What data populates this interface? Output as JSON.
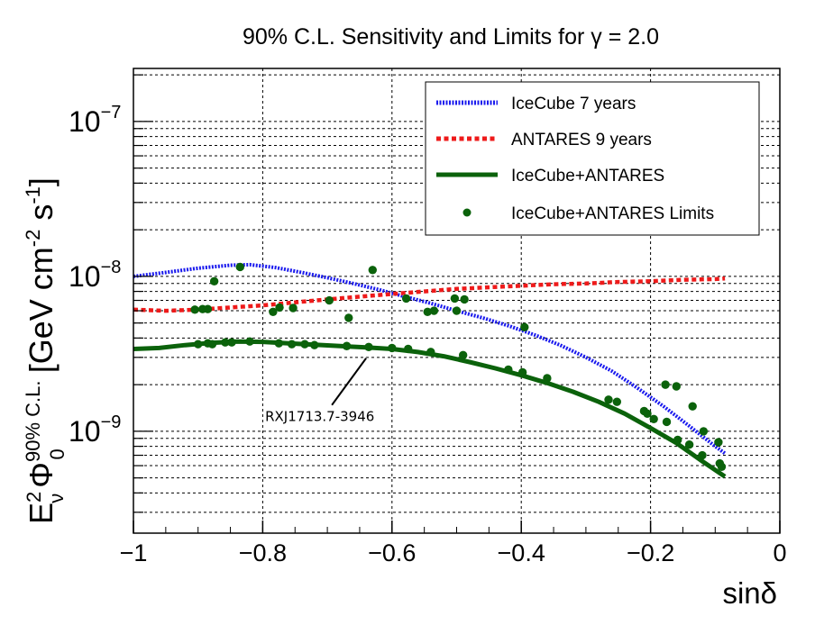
{
  "chart_data": {
    "type": "line",
    "title": "90% C.L. Sensitivity and Limits for γ = 2.0",
    "xlabel": "sinδ",
    "ylabel": {
      "base": "E",
      "base_sup": "2",
      "base_sub": "ν",
      "phi": "Φ",
      "phi_sup": "90% C.L.",
      "phi_sub": "0",
      "units": "[GeV cm",
      "units_exp1": "-2",
      "units_mid": " s",
      "units_exp2": "-1",
      "units_end": "]"
    },
    "xlim": [
      -1,
      0
    ],
    "ylim": [
      2.2e-10,
      2.2e-07
    ],
    "yscale": "log",
    "grid": true,
    "x_ticks": [
      {
        "value": -1,
        "label": "−1"
      },
      {
        "value": -0.8,
        "label": "−0.8"
      },
      {
        "value": -0.6,
        "label": "−0.6"
      },
      {
        "value": -0.4,
        "label": "−0.4"
      },
      {
        "value": -0.2,
        "label": "−0.2"
      },
      {
        "value": 0,
        "label": "0"
      }
    ],
    "y_ticks": [
      {
        "value": 1e-09,
        "base": "10",
        "exp": "−9"
      },
      {
        "value": 1e-08,
        "base": "10",
        "exp": "−8"
      },
      {
        "value": 1e-07,
        "base": "10",
        "exp": "−7"
      }
    ],
    "legend_position": "top-right",
    "series": [
      {
        "name": "IceCube 7 years",
        "kind": "line",
        "style": "dotted",
        "color": "#1a1aee",
        "x": [
          -1.0,
          -0.95,
          -0.9,
          -0.85,
          -0.82,
          -0.78,
          -0.74,
          -0.7,
          -0.66,
          -0.62,
          -0.58,
          -0.54,
          -0.5,
          -0.46,
          -0.42,
          -0.38,
          -0.34,
          -0.3,
          -0.26,
          -0.22,
          -0.18,
          -0.14,
          -0.1,
          -0.085
        ],
        "y": [
          1e-08,
          1.06e-08,
          1.13e-08,
          1.18e-08,
          1.19e-08,
          1.14e-08,
          1.06e-08,
          9.8e-09,
          9e-09,
          8.2e-09,
          7.4e-09,
          6.7e-09,
          6e-09,
          5.4e-09,
          4.8e-09,
          4.2e-09,
          3.6e-09,
          3e-09,
          2.45e-09,
          1.9e-09,
          1.45e-09,
          1.08e-09,
          8e-10,
          7.2e-10
        ]
      },
      {
        "name": "ANTARES 9 years",
        "kind": "line",
        "style": "dashed",
        "color": "#ee1a1a",
        "x": [
          -1.0,
          -0.95,
          -0.9,
          -0.85,
          -0.8,
          -0.75,
          -0.7,
          -0.65,
          -0.6,
          -0.55,
          -0.5,
          -0.45,
          -0.4,
          -0.35,
          -0.3,
          -0.25,
          -0.2,
          -0.15,
          -0.1,
          -0.085
        ],
        "y": [
          6.1e-09,
          6e-09,
          6.1e-09,
          6.3e-09,
          6.5e-09,
          6.8e-09,
          7.1e-09,
          7.4e-09,
          7.7e-09,
          8e-09,
          8.3e-09,
          8.5e-09,
          8.7e-09,
          8.9e-09,
          9e-09,
          9.2e-09,
          9.3e-09,
          9.5e-09,
          9.6e-09,
          9.7e-09
        ]
      },
      {
        "name": "IceCube+ANTARES",
        "kind": "line",
        "style": "solid",
        "color": "#0b620b",
        "x": [
          -1.0,
          -0.96,
          -0.92,
          -0.88,
          -0.84,
          -0.8,
          -0.76,
          -0.72,
          -0.68,
          -0.64,
          -0.6,
          -0.56,
          -0.52,
          -0.48,
          -0.44,
          -0.4,
          -0.36,
          -0.32,
          -0.28,
          -0.24,
          -0.2,
          -0.16,
          -0.12,
          -0.085
        ],
        "y": [
          3.4e-09,
          3.45e-09,
          3.6e-09,
          3.72e-09,
          3.8e-09,
          3.78e-09,
          3.7e-09,
          3.62e-09,
          3.55e-09,
          3.48e-09,
          3.4e-09,
          3.25e-09,
          3.05e-09,
          2.8e-09,
          2.55e-09,
          2.3e-09,
          2.05e-09,
          1.8e-09,
          1.55e-09,
          1.3e-09,
          1.05e-09,
          8.4e-10,
          6.4e-10,
          5.1e-10
        ]
      },
      {
        "name": "IceCube+ANTARES Limits",
        "kind": "scatter",
        "color": "#0b620b",
        "x": [
          -0.905,
          -0.9,
          -0.893,
          -0.885,
          -0.885,
          -0.878,
          -0.875,
          -0.858,
          -0.848,
          -0.835,
          -0.82,
          -0.784,
          -0.775,
          -0.774,
          -0.755,
          -0.753,
          -0.735,
          -0.72,
          -0.697,
          -0.67,
          -0.667,
          -0.636,
          -0.63,
          -0.6,
          -0.578,
          -0.575,
          -0.545,
          -0.54,
          -0.535,
          -0.503,
          -0.5,
          -0.49,
          -0.488,
          -0.42,
          -0.398,
          -0.395,
          -0.36,
          -0.265,
          -0.252,
          -0.21,
          -0.205,
          -0.195,
          -0.177,
          -0.175,
          -0.16,
          -0.158,
          -0.14,
          -0.135,
          -0.12,
          -0.118,
          -0.095,
          -0.093,
          -0.09
        ],
        "y": [
          6.1e-09,
          3.65e-09,
          6.15e-09,
          3.7e-09,
          6.15e-09,
          3.65e-09,
          9.3e-09,
          3.75e-09,
          3.75e-09,
          1.15e-08,
          3.8e-09,
          5.9e-09,
          3.7e-09,
          6.3e-09,
          3.65e-09,
          6.25e-09,
          3.65e-09,
          3.6e-09,
          7e-09,
          3.55e-09,
          5.4e-09,
          3.5e-09,
          1.1e-08,
          3.45e-09,
          7.2e-09,
          3.4e-09,
          5.9e-09,
          3.25e-09,
          6e-09,
          7.2e-09,
          6e-09,
          3.1e-09,
          7.1e-09,
          2.5e-09,
          2.4e-09,
          4.7e-09,
          2.2e-09,
          1.6e-09,
          1.55e-09,
          1.35e-09,
          1.3e-09,
          1.2e-09,
          2e-09,
          1.15e-09,
          1.95e-09,
          8.8e-10,
          8.2e-10,
          1.45e-09,
          7e-10,
          1e-09,
          8.5e-10,
          6.2e-10,
          5.9e-10
        ]
      }
    ],
    "annotations": [
      {
        "text": "RXJ1713.7-3946",
        "point_x": -0.64,
        "point_y": 3.48e-09
      }
    ]
  }
}
